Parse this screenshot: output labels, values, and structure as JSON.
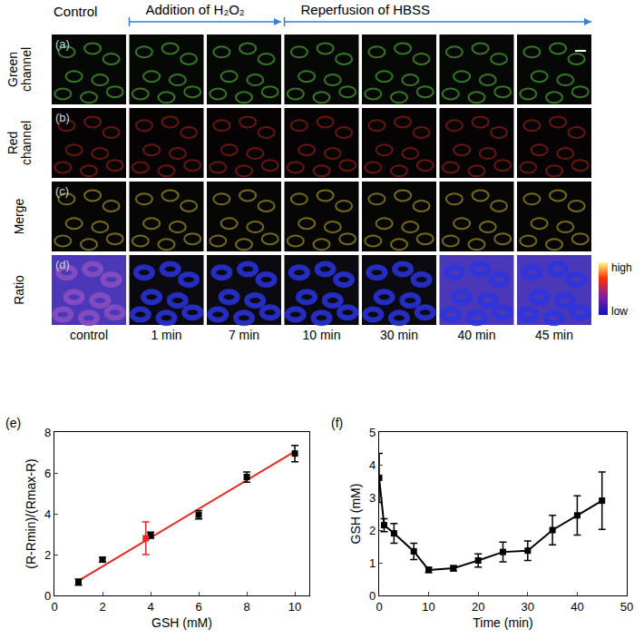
{
  "image_panels": {
    "header": [
      "Control",
      "Addition of H₂O₂",
      "Reperfusion of HBSS"
    ],
    "rows": [
      "Green channel",
      "Red channel",
      "Merge",
      "Ratio"
    ],
    "row_letters": [
      "(a)",
      "(b)",
      "(c)",
      "(d)"
    ],
    "columns": [
      "control",
      "1 min",
      "7 min",
      "10 min",
      "30 min",
      "40 min",
      "45 min"
    ],
    "colorbar": {
      "high": "high",
      "low": "low"
    }
  },
  "chart_data": [
    {
      "type": "scatter",
      "annotations": [
        "(e)"
      ],
      "x_label": "GSH (mM)",
      "y_label": "(R-Rmin)/(Rmax-R)",
      "xlim": [
        0,
        10.6
      ],
      "xticks": [
        0,
        2,
        4,
        6,
        8,
        10
      ],
      "ylim": [
        0,
        8
      ],
      "yticks": [
        0,
        2,
        4,
        6,
        8
      ],
      "series": [
        {
          "type": "line",
          "color": "#e8281e",
          "line_style": "solid",
          "x": [
            1,
            10
          ],
          "values": [
            0.72,
            7.05
          ]
        },
        {
          "type": "scatter",
          "color": "#000000",
          "marker": "square",
          "x": [
            1,
            2,
            4,
            6,
            8,
            10
          ],
          "values": [
            0.65,
            1.75,
            2.95,
            3.95,
            5.8,
            6.95
          ],
          "error": [
            0.15,
            0.12,
            0.15,
            0.2,
            0.25,
            0.4
          ]
        },
        {
          "type": "scatter",
          "color": "#e8281e",
          "marker": "square",
          "x": [
            3.8
          ],
          "values": [
            2.8
          ],
          "error": [
            0.8
          ]
        }
      ]
    },
    {
      "type": "line",
      "annotations": [
        "(f)"
      ],
      "x_label": "Time (min)",
      "y_label": "GSH (mM)",
      "xlim": [
        0,
        50
      ],
      "xticks": [
        0,
        10,
        20,
        30,
        40,
        50
      ],
      "ylim": [
        0,
        5
      ],
      "yticks": [
        0,
        1,
        2,
        3,
        4,
        5
      ],
      "series": [
        {
          "type": "line",
          "color": "#000000",
          "marker": "square",
          "line_style": "solid",
          "x": [
            0,
            1,
            3,
            7,
            10,
            15,
            20,
            25,
            30,
            35,
            40,
            45
          ],
          "values": [
            3.6,
            2.15,
            1.9,
            1.35,
            0.78,
            0.83,
            1.07,
            1.33,
            1.37,
            2.0,
            2.45,
            2.9
          ],
          "error": [
            0.75,
            0.2,
            0.3,
            0.25,
            0.08,
            0.08,
            0.2,
            0.3,
            0.3,
            0.45,
            0.6,
            0.88
          ]
        }
      ]
    }
  ]
}
